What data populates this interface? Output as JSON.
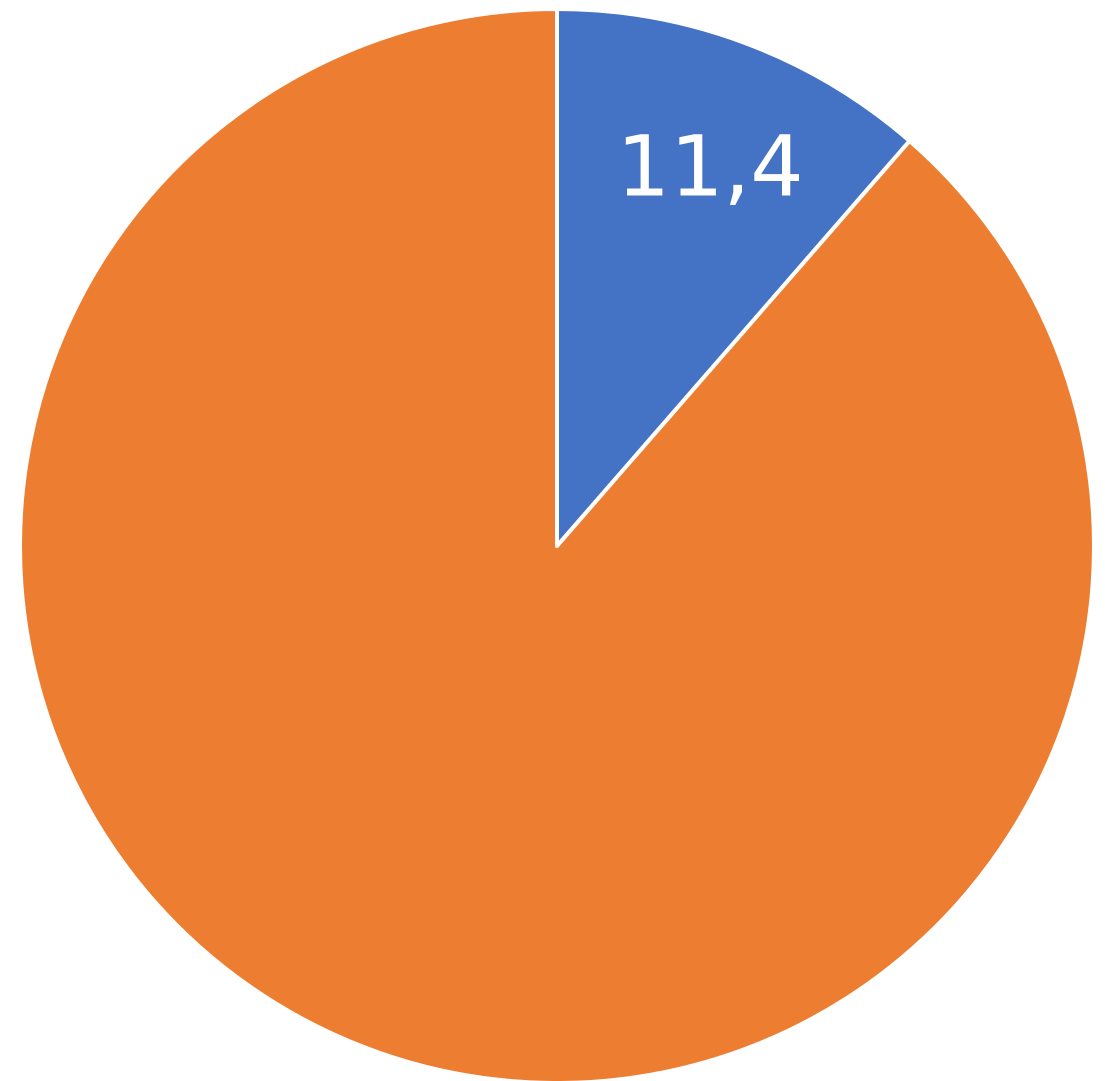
{
  "chart_data": {
    "type": "pie",
    "start_angle_deg": 0,
    "direction": "clockwise",
    "slices": [
      {
        "value": 11.4,
        "label": "11,4",
        "color": "#4472C4",
        "show_label": true
      },
      {
        "value": 88.6,
        "label": "",
        "color": "#ED7D31",
        "show_label": false
      }
    ],
    "title": "",
    "legend": "none"
  }
}
